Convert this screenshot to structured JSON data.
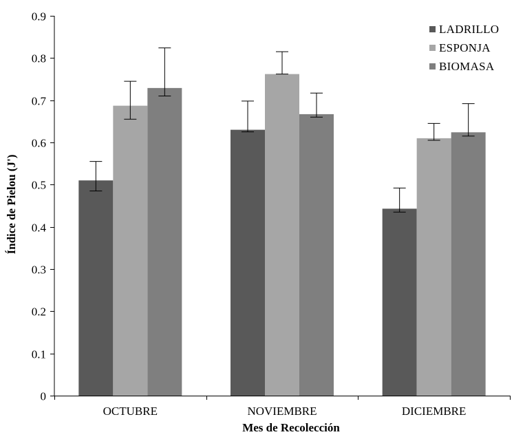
{
  "chart_data": {
    "type": "bar",
    "title": "",
    "xlabel": "Mes de Recolección",
    "ylabel": "Índice de Pielou (J')",
    "ylim": [
      0,
      0.9
    ],
    "yticks": [
      "0",
      "0.1",
      "0.2",
      "0.3",
      "0.4",
      "0.5",
      "0.6",
      "0.7",
      "0.8",
      "0.9"
    ],
    "categories": [
      "OCTUBRE",
      "NOVIEMBRE",
      "DICIEMBRE"
    ],
    "series": [
      {
        "name": "LADRILLO",
        "values": [
          0.51,
          0.63,
          0.443
        ],
        "error_low": [
          0.485,
          0.625,
          0.435
        ],
        "error_high": [
          0.555,
          0.698,
          0.492
        ],
        "color": "#595959"
      },
      {
        "name": "ESPONJA",
        "values": [
          0.687,
          0.762,
          0.61
        ],
        "error_low": [
          0.655,
          0.762,
          0.605
        ],
        "error_high": [
          0.745,
          0.815,
          0.645
        ],
        "color": "#a6a6a6"
      },
      {
        "name": "BIOMASA",
        "values": [
          0.729,
          0.667,
          0.624
        ],
        "error_low": [
          0.71,
          0.66,
          0.615
        ],
        "error_high": [
          0.824,
          0.717,
          0.692
        ],
        "color": "#7f7f7f"
      }
    ],
    "grid": false,
    "legend_position": "top-right"
  }
}
